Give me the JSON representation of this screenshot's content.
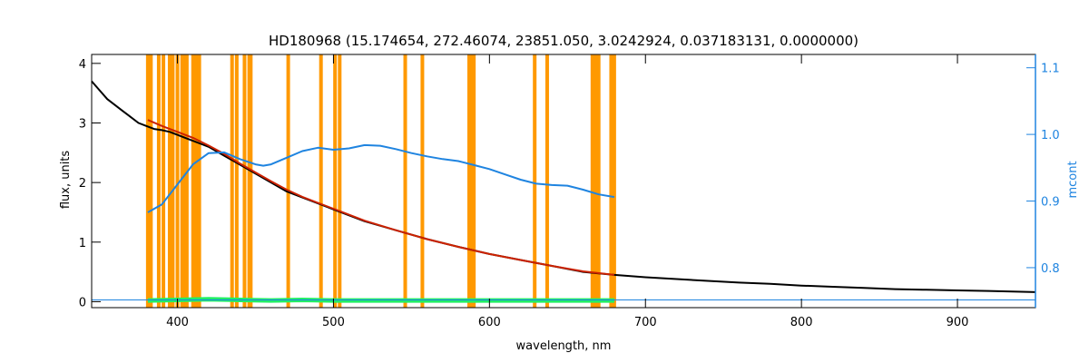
{
  "chart_data": {
    "type": "line",
    "title": "HD180968    (15.174654, 272.46074, 23851.050, 3.0242924, 0.037183131, 0.0000000)",
    "xlabel": "wavelength, nm",
    "ylabel": "flux, units",
    "y2label": "mcont",
    "xlim": [
      345,
      950
    ],
    "ylim": [
      -0.1,
      4.15
    ],
    "y2lim": [
      0.74,
      1.12
    ],
    "x_ticks": [
      400,
      500,
      600,
      700,
      800,
      900
    ],
    "y_ticks": [
      0,
      1,
      2,
      3,
      4
    ],
    "y2_ticks": [
      0.8,
      0.9,
      1.0,
      1.1
    ],
    "grid": false,
    "colors": {
      "observed": "#000000",
      "model": "#cc2200",
      "continuum": "#1f84e0",
      "residual": "#22ee66",
      "masks": "#ff9900",
      "axis": "#000000",
      "axis2": "#1f84e0"
    },
    "mask_lines": [
      381,
      383,
      388,
      391,
      395,
      397,
      400,
      403,
      405,
      406,
      410,
      412,
      414,
      435,
      438,
      443,
      446,
      447,
      471,
      492,
      501,
      504,
      546,
      557,
      587,
      588,
      589,
      590,
      629,
      637,
      666,
      668,
      670,
      678,
      680
    ],
    "series": [
      {
        "role": "observed",
        "x": [
          345,
          350,
          355,
          360,
          365,
          370,
          375,
          380,
          385,
          390,
          395,
          400,
          405,
          410,
          415,
          420,
          430,
          440,
          450,
          460,
          470,
          480,
          490,
          500,
          520,
          540,
          560,
          580,
          600,
          620,
          640,
          660,
          680,
          700,
          720,
          740,
          760,
          780,
          800,
          820,
          840,
          860,
          880,
          900,
          920,
          950
        ],
        "y": [
          3.7,
          3.55,
          3.4,
          3.3,
          3.2,
          3.1,
          3.0,
          2.95,
          2.9,
          2.88,
          2.85,
          2.8,
          2.75,
          2.7,
          2.65,
          2.6,
          2.45,
          2.3,
          2.15,
          2.0,
          1.85,
          1.75,
          1.65,
          1.55,
          1.35,
          1.2,
          1.05,
          0.92,
          0.8,
          0.7,
          0.6,
          0.5,
          0.45,
          0.41,
          0.38,
          0.35,
          0.32,
          0.3,
          0.27,
          0.25,
          0.23,
          0.21,
          0.2,
          0.19,
          0.18,
          0.16
        ]
      },
      {
        "role": "model",
        "x": [
          381,
          390,
          400,
          410,
          420,
          430,
          440,
          450,
          460,
          470,
          480,
          490,
          500,
          520,
          540,
          560,
          580,
          600,
          620,
          640,
          660,
          680
        ],
        "y": [
          3.05,
          2.95,
          2.85,
          2.75,
          2.62,
          2.48,
          2.32,
          2.17,
          2.02,
          1.88,
          1.76,
          1.66,
          1.56,
          1.36,
          1.2,
          1.05,
          0.92,
          0.8,
          0.7,
          0.6,
          0.51,
          0.45
        ]
      },
      {
        "role": "continuum",
        "axis": "right",
        "x": [
          381,
          390,
          400,
          410,
          420,
          430,
          440,
          450,
          455,
          460,
          470,
          480,
          490,
          500,
          510,
          520,
          530,
          540,
          550,
          560,
          570,
          580,
          590,
          600,
          610,
          620,
          630,
          640,
          650,
          660,
          670,
          680
        ],
        "y": [
          0.883,
          0.895,
          0.925,
          0.955,
          0.972,
          0.973,
          0.963,
          0.955,
          0.953,
          0.955,
          0.965,
          0.975,
          0.98,
          0.977,
          0.979,
          0.984,
          0.983,
          0.978,
          0.972,
          0.967,
          0.963,
          0.96,
          0.954,
          0.948,
          0.94,
          0.932,
          0.926,
          0.924,
          0.923,
          0.917,
          0.91,
          0.906
        ]
      },
      {
        "role": "residual",
        "x": [
          381,
          400,
          420,
          440,
          460,
          480,
          500,
          520,
          540,
          560,
          580,
          600,
          620,
          640,
          660,
          680
        ],
        "y": [
          0.02,
          0.03,
          0.04,
          0.03,
          0.02,
          0.03,
          0.02,
          0.02,
          0.02,
          0.02,
          0.02,
          0.02,
          0.02,
          0.02,
          0.02,
          0.02
        ]
      },
      {
        "role": "zero-line",
        "x": [
          345,
          950
        ],
        "y": [
          0.03,
          0.03
        ]
      }
    ]
  }
}
